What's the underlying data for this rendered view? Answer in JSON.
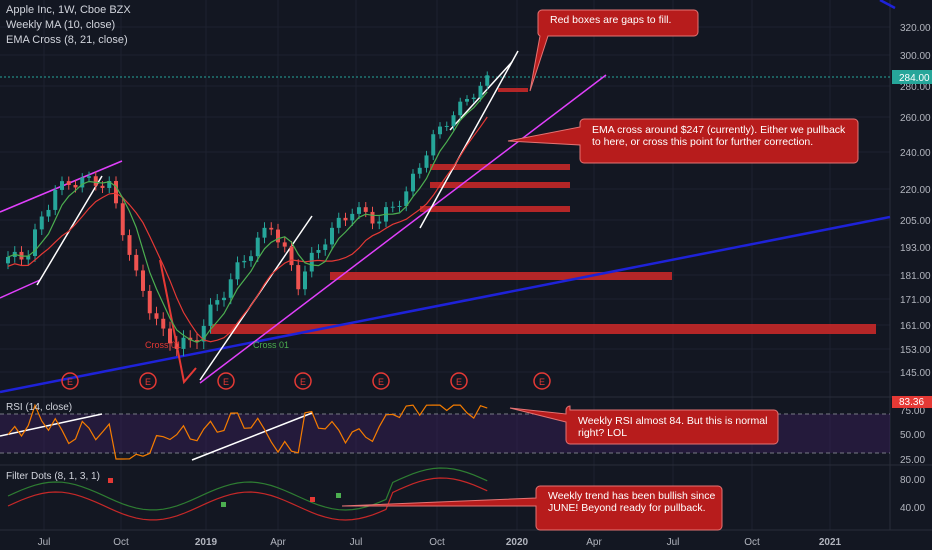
{
  "header": {
    "symbol": "Apple Inc, 1W, Cboe BZX",
    "indicator_1": "Weekly MA (10, close)",
    "indicator_2": "EMA Cross (8, 21, close)"
  },
  "markers": {
    "cross_red": "Cross 01",
    "cross_green": "Cross 01",
    "earnings_label": "E"
  },
  "rsi_panel": {
    "title": "RSI (14, close)",
    "current_value": "83.36"
  },
  "filter_panel": {
    "title": "Filter Dots (8, 1, 3, 1)"
  },
  "annotations": {
    "gaps": "Red boxes are gaps to fill.",
    "ema": "EMA cross around $247 (currently).  Either we pullback to here, or cross this point for further correction.",
    "rsi": "Weekly RSI almost 84.  But this is normal right? LOL",
    "trend": "Weekly trend has been bullish since JUNE!  Beyond ready for pullback."
  },
  "colors": {
    "background": "#131722",
    "up_candle": "#26a69a",
    "down_candle": "#ef5350",
    "ma": "#e53935",
    "ema_fast": "#4caf50",
    "rsi_line": "#f57c00",
    "trendline_long": "#1e22d8",
    "trendline_channel": "#e040fb",
    "gap_box": "#c62828",
    "callout": "#b71c1c"
  },
  "chart_data": {
    "type": "candlestick",
    "price_axis_ticks": [
      "320.00",
      "300.00",
      "280.00",
      "260.00",
      "240.00",
      "220.00",
      "205.00",
      "193.00",
      "181.00",
      "171.00",
      "161.00",
      "153.00",
      "145.00"
    ],
    "current_price": "284.00",
    "rsi_axis_ticks": [
      "75.00",
      "50.00",
      "25.00"
    ],
    "filter_axis_ticks": [
      "80.00",
      "40.00"
    ],
    "time_axis": [
      "Jul",
      "Oct",
      "2019",
      "Apr",
      "Jul",
      "Oct",
      "2020",
      "Apr",
      "Jul",
      "Oct",
      "2021"
    ],
    "price_series_approx": [
      {
        "date": "2018-06",
        "close": 186
      },
      {
        "date": "2018-07",
        "close": 191
      },
      {
        "date": "2018-08",
        "close": 220
      },
      {
        "date": "2018-09",
        "close": 225
      },
      {
        "date": "2018-10",
        "close": 222
      },
      {
        "date": "2018-11",
        "close": 180
      },
      {
        "date": "2018-12",
        "close": 157
      },
      {
        "date": "2019-01",
        "close": 154
      },
      {
        "date": "2019-02",
        "close": 170
      },
      {
        "date": "2019-03",
        "close": 188
      },
      {
        "date": "2019-04",
        "close": 203
      },
      {
        "date": "2019-05",
        "close": 178
      },
      {
        "date": "2019-06",
        "close": 197
      },
      {
        "date": "2019-07",
        "close": 210
      },
      {
        "date": "2019-08",
        "close": 205
      },
      {
        "date": "2019-09",
        "close": 218
      },
      {
        "date": "2019-10",
        "close": 248
      },
      {
        "date": "2019-11",
        "close": 267
      },
      {
        "date": "2019-12",
        "close": 284
      }
    ],
    "gap_boxes": [
      "233–236",
      "222–225",
      "212–215",
      "179–183",
      "158–162"
    ],
    "rsi_current": 83.36
  }
}
